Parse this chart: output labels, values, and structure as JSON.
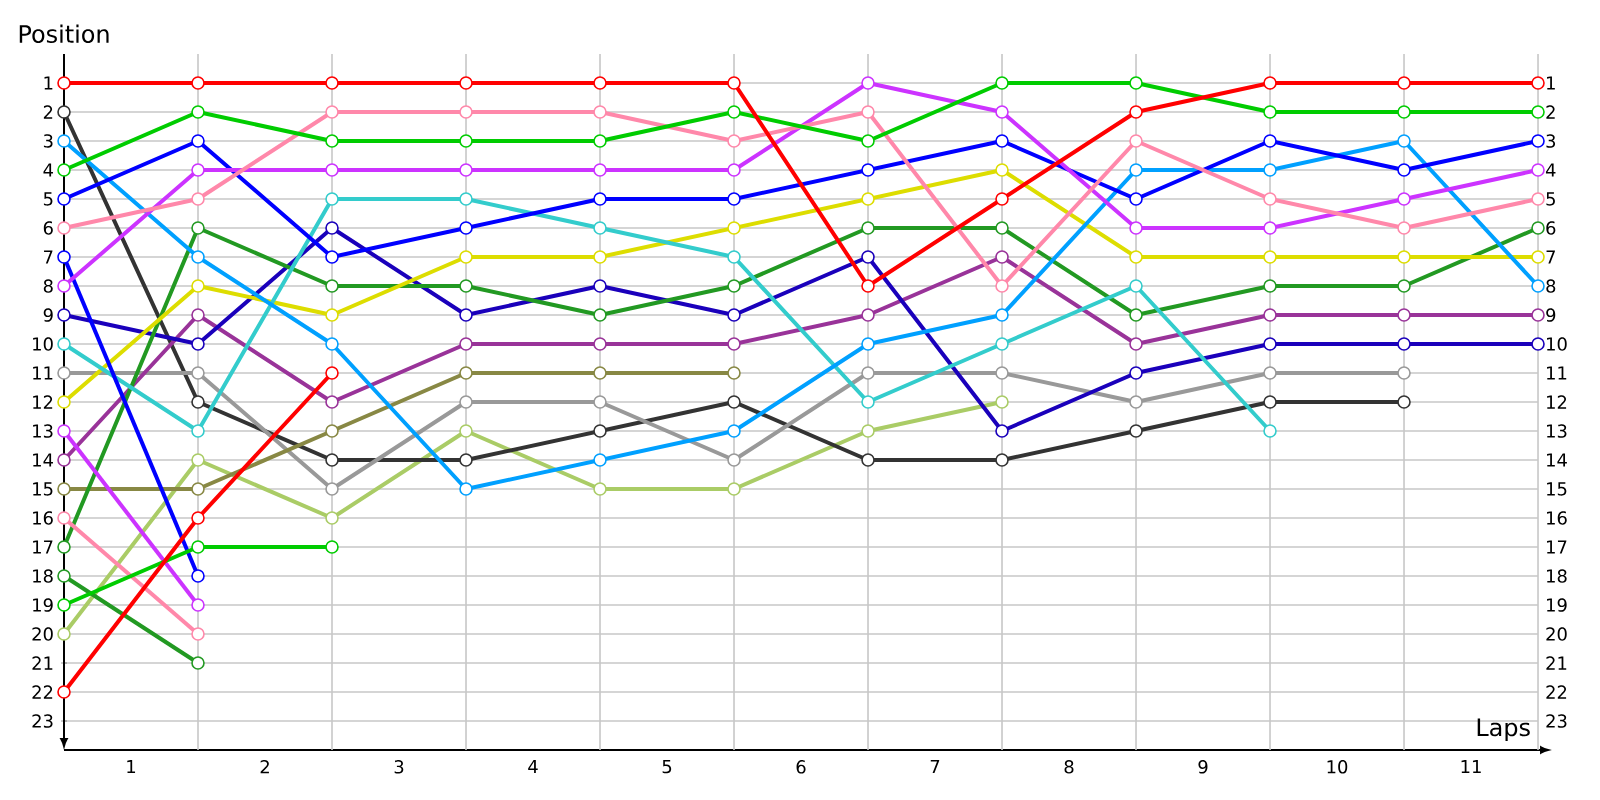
{
  "chart_data": {
    "type": "line",
    "xlabel": "Laps",
    "ylabel": "Position",
    "marker": "circle",
    "line_style": "solid",
    "grid": true,
    "x": [
      0,
      1,
      2,
      3,
      4,
      5,
      6,
      7,
      8,
      9,
      10,
      11
    ],
    "xlim": [
      0,
      11
    ],
    "xticks": [
      {
        "value": 0.5,
        "label": "1"
      },
      {
        "value": 1,
        "label": null
      },
      {
        "value": 1.5,
        "label": "2"
      },
      {
        "value": 2,
        "label": null
      },
      {
        "value": 2.5,
        "label": "3"
      },
      {
        "value": 3,
        "label": null
      },
      {
        "value": 3.5,
        "label": "4"
      },
      {
        "value": 4,
        "label": null
      },
      {
        "value": 4.5,
        "label": "5"
      },
      {
        "value": 5,
        "label": null
      },
      {
        "value": 5.5,
        "label": "6"
      },
      {
        "value": 6,
        "label": null
      },
      {
        "value": 6.5,
        "label": "7"
      },
      {
        "value": 7,
        "label": null
      },
      {
        "value": 7.5,
        "label": "8"
      },
      {
        "value": 8,
        "label": null
      },
      {
        "value": 8.5,
        "label": "9"
      },
      {
        "value": 9,
        "label": null
      },
      {
        "value": 9.5,
        "label": "10"
      },
      {
        "value": 10,
        "label": null
      },
      {
        "value": 10.5,
        "label": "11"
      },
      {
        "value": 11,
        "label": null
      }
    ],
    "ylim": [
      24,
      0
    ],
    "yticks": [
      1,
      2,
      3,
      4,
      5,
      6,
      7,
      8,
      9,
      10,
      11,
      12,
      13,
      14,
      15,
      16,
      17,
      18,
      19,
      20,
      21,
      22,
      23
    ],
    "y2lim": [
      24,
      0
    ],
    "y2ticks": [
      1,
      2,
      3,
      4,
      5,
      6,
      7,
      8,
      9,
      10,
      11,
      12,
      13,
      14,
      15,
      16,
      17,
      18,
      19,
      20,
      21,
      22,
      23
    ],
    "series": [
      {
        "color": "#aacc66",
        "values": [
          20,
          14,
          16,
          13,
          15,
          15,
          13,
          12,
          null,
          null,
          null,
          null
        ]
      },
      {
        "color": "#333333",
        "values": [
          2,
          12,
          14,
          14,
          13,
          12,
          14,
          14,
          13,
          12,
          12,
          null
        ]
      },
      {
        "color": "#999999",
        "values": [
          11,
          11,
          15,
          12,
          12,
          14,
          11,
          11,
          12,
          11,
          11,
          null
        ]
      },
      {
        "color": "#888844",
        "values": [
          15,
          15,
          13,
          11,
          11,
          11,
          null,
          null,
          null,
          null,
          null,
          null
        ]
      },
      {
        "color": "#993399",
        "values": [
          14,
          9,
          12,
          10,
          10,
          10,
          9,
          7,
          10,
          9,
          9,
          9
        ]
      },
      {
        "color": "#1a00bb",
        "values": [
          9,
          10,
          6,
          9,
          8,
          9,
          7,
          13,
          11,
          10,
          10,
          10
        ]
      },
      {
        "color": "#229922",
        "values": [
          17,
          6,
          8,
          8,
          9,
          8,
          6,
          6,
          9,
          8,
          8,
          6
        ]
      },
      {
        "color": "#229922",
        "values": [
          18,
          21,
          null,
          null,
          null,
          null,
          null,
          null,
          null,
          null,
          null,
          null
        ]
      },
      {
        "color": "#dddd00",
        "values": [
          12,
          8,
          9,
          7,
          7,
          6,
          5,
          4,
          7,
          7,
          7,
          7
        ]
      },
      {
        "color": "#33cccc",
        "values": [
          10,
          13,
          5,
          5,
          6,
          7,
          12,
          10,
          8,
          13,
          null,
          null
        ]
      },
      {
        "color": "#00a0ff",
        "values": [
          3,
          7,
          10,
          15,
          14,
          13,
          10,
          9,
          4,
          4,
          3,
          8
        ]
      },
      {
        "color": "#0000ff",
        "values": [
          5,
          3,
          7,
          6,
          5,
          5,
          4,
          3,
          5,
          3,
          4,
          3
        ]
      },
      {
        "color": "#0000ff",
        "values": [
          7,
          18,
          null,
          null,
          null,
          null,
          null,
          null,
          null,
          null,
          null,
          null
        ]
      },
      {
        "color": "#cc33ff",
        "values": [
          8,
          4,
          4,
          4,
          4,
          4,
          1,
          2,
          6,
          6,
          5,
          4
        ]
      },
      {
        "color": "#cc33ff",
        "values": [
          13,
          19,
          null,
          null,
          null,
          null,
          null,
          null,
          null,
          null,
          null,
          null
        ]
      },
      {
        "color": "#ff88aa",
        "values": [
          6,
          5,
          2,
          2,
          2,
          3,
          2,
          8,
          3,
          5,
          6,
          5
        ]
      },
      {
        "color": "#ff88aa",
        "values": [
          16,
          20,
          null,
          null,
          null,
          null,
          null,
          null,
          null,
          null,
          null,
          null
        ]
      },
      {
        "color": "#00cc00",
        "values": [
          4,
          2,
          3,
          3,
          3,
          2,
          3,
          1,
          1,
          2,
          2,
          2
        ]
      },
      {
        "color": "#00cc00",
        "values": [
          19,
          17,
          17,
          null,
          null,
          null,
          null,
          null,
          null,
          null,
          null,
          null
        ]
      },
      {
        "color": "#ff0000",
        "values": [
          1,
          1,
          1,
          1,
          1,
          1,
          8,
          5,
          2,
          1,
          1,
          1
        ]
      },
      {
        "color": "#ff0000",
        "values": [
          22,
          16,
          11,
          null,
          null,
          null,
          null,
          null,
          null,
          null,
          null,
          null
        ]
      }
    ]
  }
}
